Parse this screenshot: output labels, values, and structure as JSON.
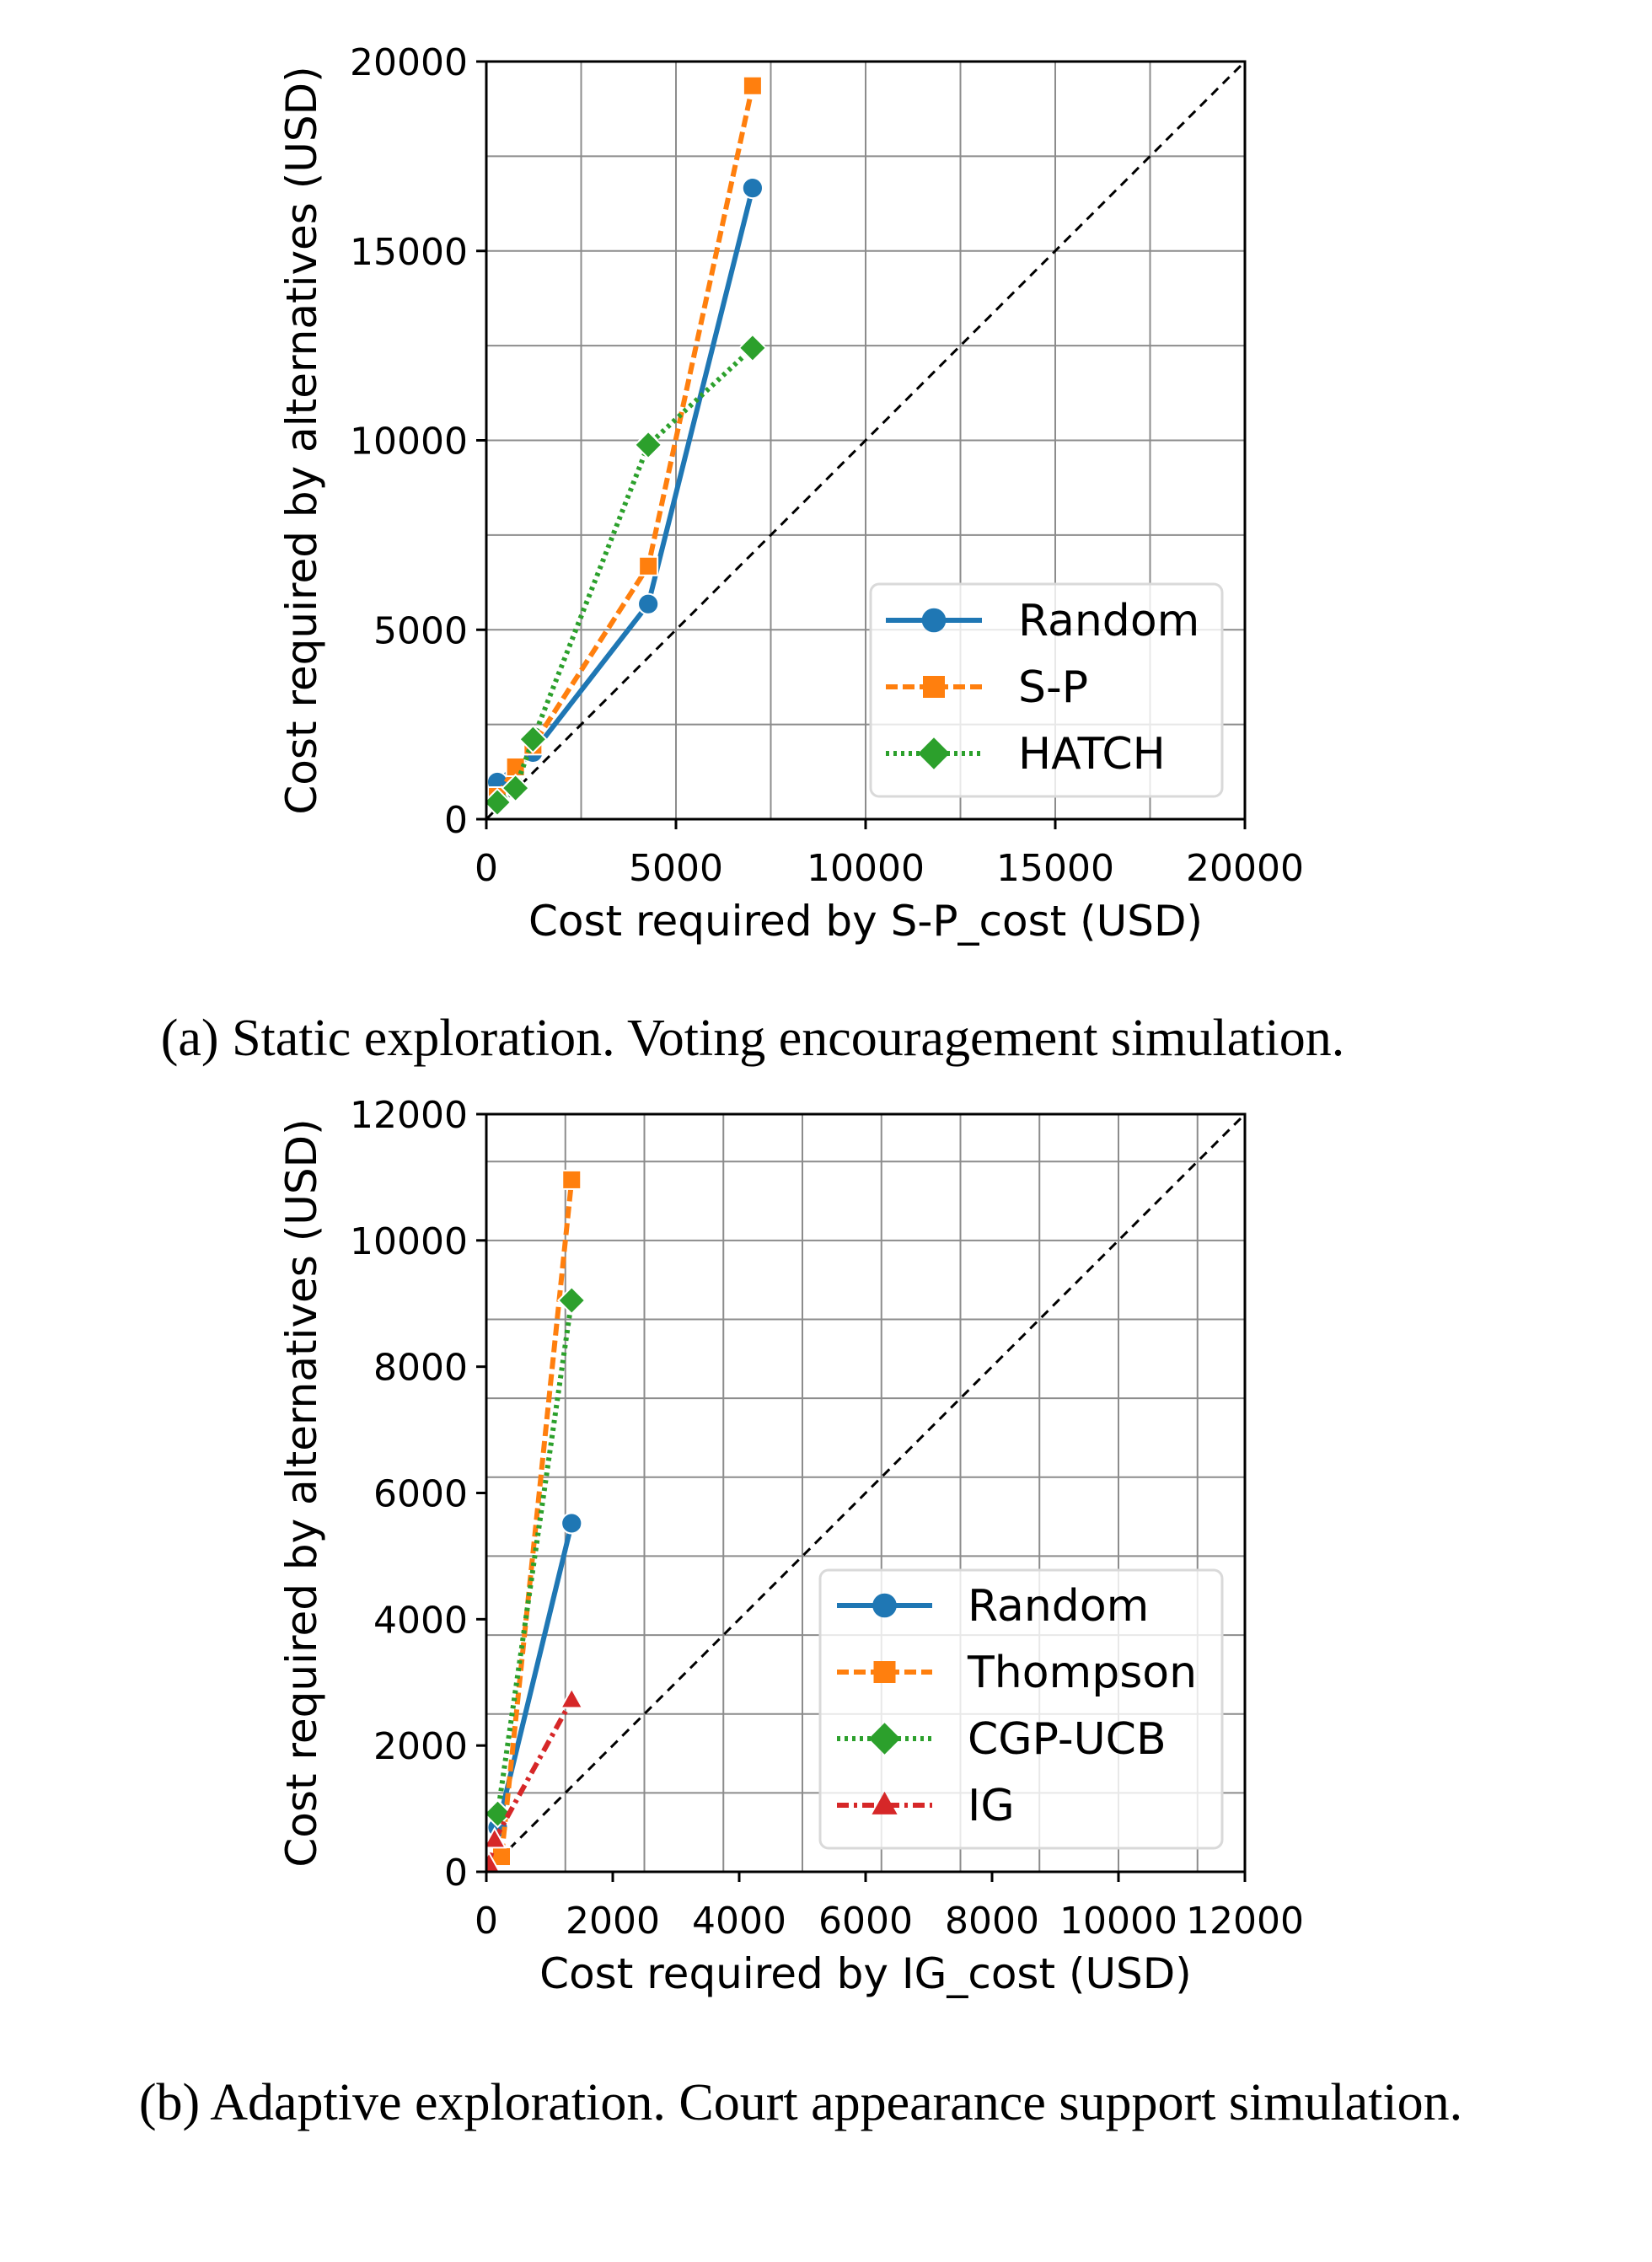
{
  "chart_data": [
    {
      "id": "a",
      "type": "line",
      "caption": "(a) Static exploration. Voting encouragement simulation.",
      "xlabel": "Cost required by S-P_cost (USD)",
      "ylabel": "Cost required by alternatives (USD)",
      "xlim": [
        0,
        20000
      ],
      "ylim": [
        0,
        20000
      ],
      "xticks": [
        0,
        5000,
        10000,
        15000,
        20000
      ],
      "yticks": [
        0,
        5000,
        10000,
        15000,
        20000
      ],
      "xtick_labels": [
        "0",
        "5000",
        "10000",
        "15000",
        "20000"
      ],
      "ytick_labels": [
        "0",
        "5000",
        "10000",
        "15000",
        "20000"
      ],
      "grid": true,
      "grid_step": 2500,
      "diagonal": "y = x reference (black dashed)",
      "legend_position": "lower-right",
      "series": [
        {
          "name": "Random",
          "color": "#1f77b4",
          "style": "solid",
          "marker": "circle",
          "x": [
            290,
            1230,
            4270,
            7020
          ],
          "y": [
            980,
            1760,
            5680,
            16660
          ]
        },
        {
          "name": "S-P",
          "color": "#ff7f0e",
          "style": "dashed",
          "marker": "square",
          "x": [
            290,
            770,
            1230,
            4270,
            7020
          ],
          "y": [
            600,
            1380,
            1950,
            6680,
            19360
          ]
        },
        {
          "name": "HATCH",
          "color": "#2ca02c",
          "style": "dotted",
          "marker": "diamond",
          "x": [
            290,
            770,
            1230,
            4270,
            7020
          ],
          "y": [
            445,
            820,
            2110,
            9880,
            12440
          ]
        }
      ]
    },
    {
      "id": "b",
      "type": "line",
      "caption": "(b) Adaptive exploration. Court appearance support simulation.",
      "xlabel": "Cost required by IG_cost (USD)",
      "ylabel": "Cost required by alternatives (USD)",
      "xlim": [
        0,
        12000
      ],
      "ylim": [
        0,
        12000
      ],
      "xticks": [
        0,
        2000,
        4000,
        6000,
        8000,
        10000,
        12000
      ],
      "yticks": [
        0,
        2000,
        4000,
        6000,
        8000,
        10000,
        12000
      ],
      "xtick_labels": [
        "0",
        "2000",
        "4000",
        "6000",
        "8000",
        "10000",
        "12000"
      ],
      "ytick_labels": [
        "0",
        "2000",
        "4000",
        "6000",
        "8000",
        "10000",
        "12000"
      ],
      "grid": true,
      "grid_step": 1250,
      "diagonal": "y = x reference (black dashed)",
      "legend_position": "lower-right",
      "series": [
        {
          "name": "Random",
          "color": "#1f77b4",
          "style": "solid",
          "marker": "circle",
          "x": [
            180,
            1350
          ],
          "y": [
            700,
            5520
          ]
        },
        {
          "name": "Thompson",
          "color": "#ff7f0e",
          "style": "dashed",
          "marker": "square",
          "x": [
            40,
            240,
            1350
          ],
          "y": [
            100,
            240,
            10960
          ]
        },
        {
          "name": "CGP-UCB",
          "color": "#2ca02c",
          "style": "dotted",
          "marker": "diamond",
          "x": [
            180,
            1350
          ],
          "y": [
            920,
            9050
          ]
        },
        {
          "name": "IG",
          "color": "#d62728",
          "style": "dashdot",
          "marker": "triangle",
          "x": [
            40,
            130,
            1350
          ],
          "y": [
            120,
            505,
            2720
          ]
        }
      ]
    }
  ]
}
